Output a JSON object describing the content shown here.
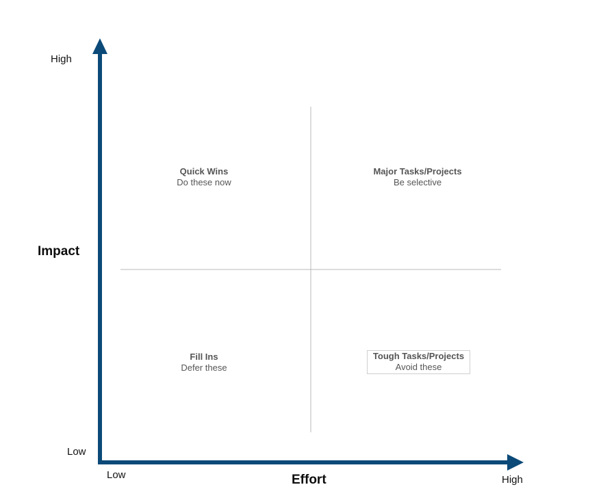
{
  "axes": {
    "y_title": "Impact",
    "x_title": "Effort",
    "y_high": "High",
    "y_low": "Low",
    "x_low": "Low",
    "x_high": "High",
    "axis_color": "#0b4a78",
    "divider_color": "#b9b9b9"
  },
  "quadrants": {
    "top_left": {
      "title": "Quick Wins",
      "subtitle": "Do these now"
    },
    "top_right": {
      "title": "Major Tasks/Projects",
      "subtitle": "Be selective"
    },
    "bottom_left": {
      "title": "Fill Ins",
      "subtitle": "Defer these"
    },
    "bottom_right": {
      "title": "Tough Tasks/Projects",
      "subtitle": "Avoid these"
    }
  }
}
